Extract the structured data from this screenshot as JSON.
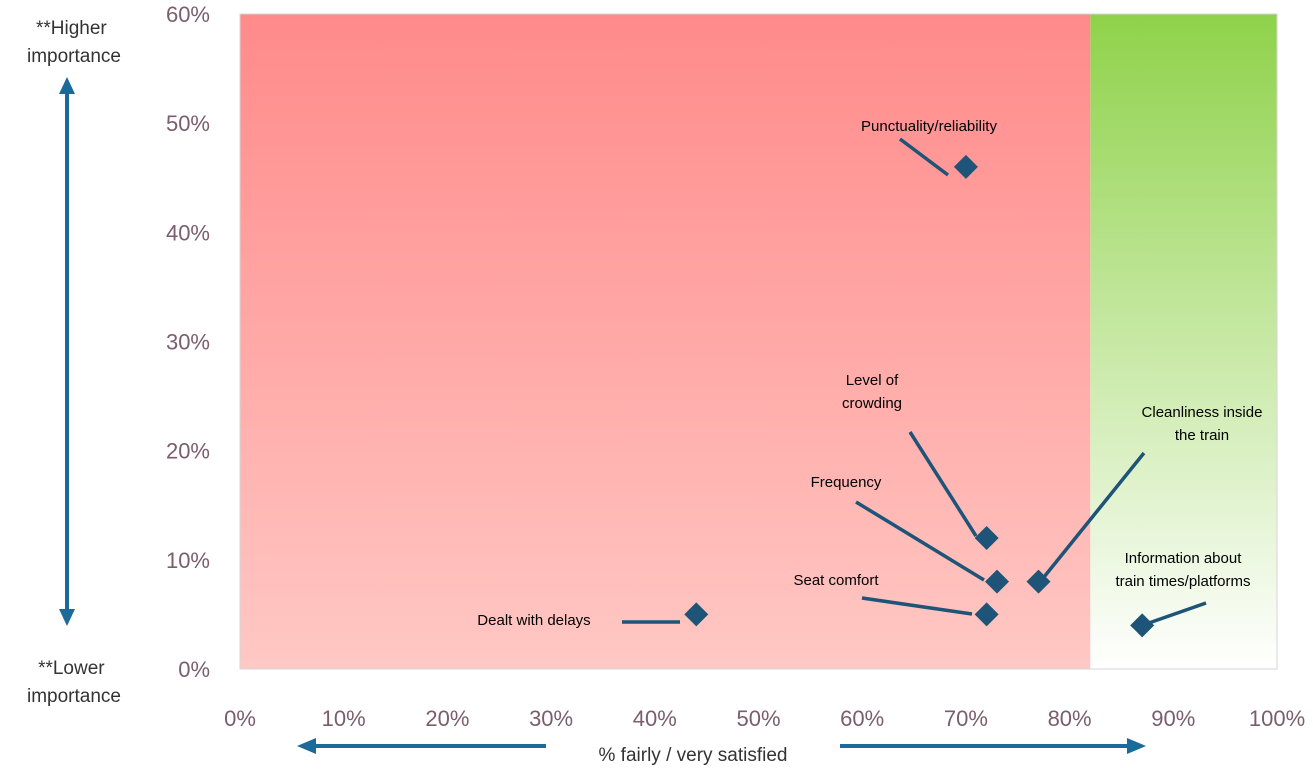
{
  "colors": {
    "dissatisfied_zone_top": "#ff8a8a",
    "dissatisfied_zone_bottom": "#ffc8c4",
    "satisfied_zone_top": "#8fd24a",
    "satisfied_zone_bottom": "#ffffff",
    "marker": "#1d5478",
    "arrow": "#1b6a9a",
    "leader": "#1d5478"
  },
  "annotations": {
    "higher_importance": [
      "**Higher",
      "importance"
    ],
    "lower_importance": [
      "**Lower",
      "importance"
    ]
  },
  "chart_data": {
    "type": "scatter",
    "title": "",
    "xlabel": "% fairly / very satisfied",
    "ylabel": "",
    "xlim": [
      0,
      100
    ],
    "ylim": [
      0,
      60
    ],
    "x_ticks": [
      "0%",
      "10%",
      "20%",
      "30%",
      "40%",
      "50%",
      "60%",
      "70%",
      "80%",
      "90%",
      "100%"
    ],
    "y_ticks": [
      "0%",
      "10%",
      "20%",
      "30%",
      "40%",
      "50%",
      "60%"
    ],
    "zones": [
      {
        "from_x": 0,
        "to_x": 82,
        "meaning": "red"
      },
      {
        "from_x": 82,
        "to_x": 100,
        "meaning": "green"
      }
    ],
    "points": [
      {
        "label": [
          "Punctuality/reliability"
        ],
        "x": 70,
        "y": 46
      },
      {
        "label": [
          "Level of",
          "crowding"
        ],
        "x": 72,
        "y": 12
      },
      {
        "label": [
          "Frequency"
        ],
        "x": 73,
        "y": 8
      },
      {
        "label": [
          "Cleanliness inside",
          "the train"
        ],
        "x": 77,
        "y": 8
      },
      {
        "label": [
          "Seat comfort"
        ],
        "x": 72,
        "y": 5
      },
      {
        "label": [
          "Dealt with delays"
        ],
        "x": 44,
        "y": 5
      },
      {
        "label": [
          "Information about",
          "train times/platforms"
        ],
        "x": 87,
        "y": 4
      }
    ]
  }
}
